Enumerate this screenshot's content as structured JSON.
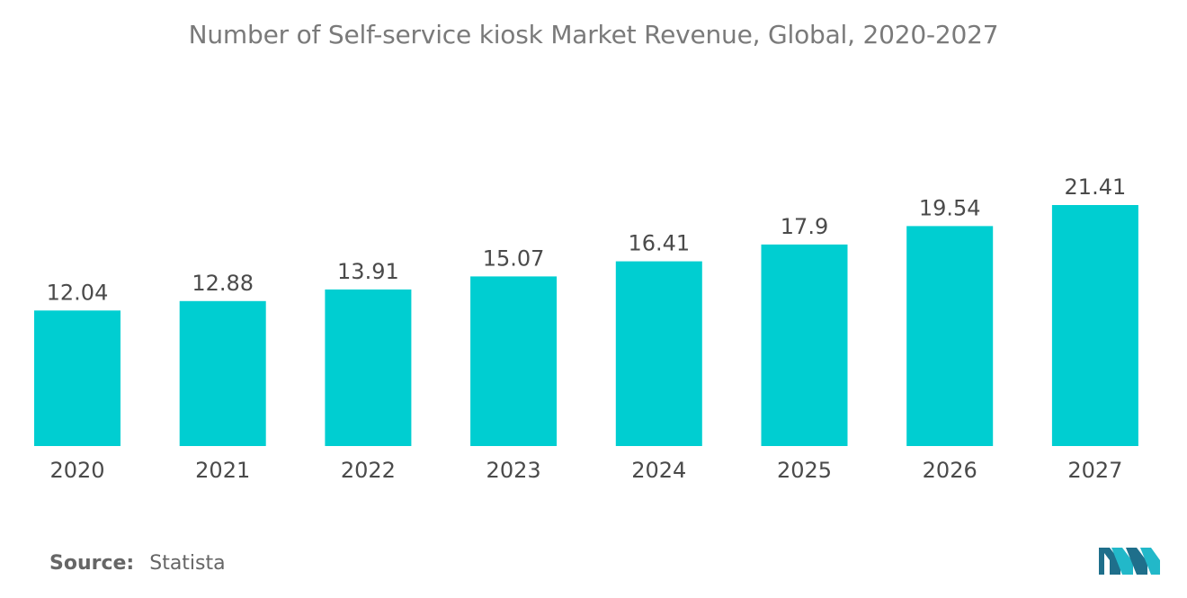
{
  "chart_data": {
    "type": "bar",
    "title": "Number of Self-service kiosk Market Revenue, Global, 2020-2027",
    "categories": [
      "2020",
      "2021",
      "2022",
      "2023",
      "2024",
      "2025",
      "2026",
      "2027"
    ],
    "values": [
      12.04,
      12.88,
      13.91,
      15.07,
      16.41,
      17.9,
      19.54,
      21.41
    ],
    "value_labels": [
      "12.04",
      "12.88",
      "13.91",
      "15.07",
      "16.41",
      "17.9",
      "19.54",
      "21.41"
    ],
    "xlabel": "",
    "ylabel": "",
    "ylim": [
      0,
      21.41
    ],
    "grid": false,
    "legend": "none",
    "bar_color": "#00ced1"
  },
  "footer": {
    "source_label": "Source:",
    "source_value": "Statista"
  },
  "logo": {
    "icon": "mordor-intelligence-logo-icon",
    "colors": [
      "#1f6f8b",
      "#22b8c9"
    ]
  }
}
